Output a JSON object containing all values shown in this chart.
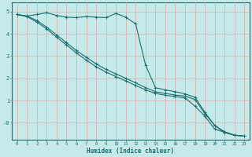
{
  "xlabel": "Humidex (Indice chaleur)",
  "bg_color": "#c6eaea",
  "line_color": "#1a6e6e",
  "grid_color": "#d8a8a8",
  "xlim": [
    -0.5,
    23.5
  ],
  "ylim": [
    -0.75,
    5.4
  ],
  "xticks": [
    0,
    1,
    2,
    3,
    4,
    5,
    6,
    7,
    8,
    9,
    10,
    11,
    12,
    13,
    14,
    15,
    16,
    17,
    18,
    19,
    20,
    21,
    22,
    23
  ],
  "yticks": [
    0,
    1,
    2,
    3,
    4,
    5
  ],
  "ytick_labels": [
    "-0",
    "1",
    "2",
    "3",
    "4",
    "5"
  ],
  "line1_x": [
    0,
    1,
    2,
    3,
    4,
    5,
    6,
    7,
    8,
    9,
    10,
    11,
    12,
    13,
    14,
    15,
    16,
    17,
    18,
    19,
    20,
    21,
    22,
    23
  ],
  "line1_y": [
    4.87,
    4.8,
    4.87,
    4.95,
    4.83,
    4.75,
    4.73,
    4.78,
    4.75,
    4.73,
    4.92,
    4.75,
    4.45,
    2.6,
    1.58,
    1.48,
    1.4,
    1.3,
    1.15,
    0.48,
    -0.12,
    -0.44,
    -0.56,
    -0.6
  ],
  "line2_x": [
    0,
    1,
    2,
    3,
    4,
    5,
    6,
    7,
    8,
    9,
    10,
    11,
    12,
    13,
    14,
    15,
    16,
    17,
    18,
    19,
    20,
    21,
    22,
    23
  ],
  "line2_y": [
    4.87,
    4.8,
    4.6,
    4.3,
    3.95,
    3.6,
    3.25,
    2.95,
    2.65,
    2.4,
    2.2,
    2.0,
    1.8,
    1.58,
    1.4,
    1.32,
    1.25,
    1.2,
    1.05,
    0.42,
    -0.12,
    -0.4,
    -0.55,
    -0.6
  ],
  "line3_x": [
    0,
    1,
    2,
    3,
    4,
    5,
    6,
    7,
    8,
    9,
    10,
    11,
    12,
    13,
    14,
    15,
    16,
    17,
    18,
    19,
    20,
    21,
    22,
    23
  ],
  "line3_y": [
    4.87,
    4.78,
    4.53,
    4.22,
    3.85,
    3.5,
    3.14,
    2.82,
    2.52,
    2.28,
    2.08,
    1.88,
    1.68,
    1.48,
    1.32,
    1.24,
    1.18,
    1.12,
    0.75,
    0.3,
    -0.28,
    -0.43,
    -0.56,
    -0.6
  ]
}
